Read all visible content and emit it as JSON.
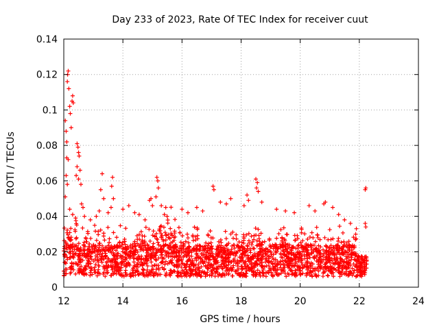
{
  "chart_data": {
    "type": "scatter",
    "title": "Day 233 of 2023, Rate Of TEC Index for receiver cuut",
    "xlabel": "GPS time / hours",
    "ylabel": "ROTI / TECUs",
    "xlim": [
      12,
      24
    ],
    "ylim": [
      0,
      0.14
    ],
    "xticks": [
      12,
      14,
      16,
      18,
      20,
      22,
      24
    ],
    "yticks": [
      0,
      0.02,
      0.04,
      0.06,
      0.08,
      0.1,
      0.12,
      0.14
    ],
    "ytick_labels": [
      "0",
      "0.02",
      "0.04",
      "0.06",
      "0.08",
      "0.1",
      "0.12",
      "0.14"
    ],
    "grid": true,
    "marker": "+",
    "color": "#ff0000",
    "series": [
      {
        "points": [
          [
            12.05,
            0.094
          ],
          [
            12.08,
            0.088
          ],
          [
            12.1,
            0.082
          ],
          [
            12.12,
            0.116
          ],
          [
            12.13,
            0.12
          ],
          [
            12.15,
            0.122
          ],
          [
            12.17,
            0.112
          ],
          [
            12.2,
            0.102
          ],
          [
            12.22,
            0.098
          ],
          [
            12.25,
            0.09
          ],
          [
            12.28,
            0.105
          ],
          [
            12.3,
            0.108
          ],
          [
            12.32,
            0.104
          ],
          [
            12.1,
            0.073
          ],
          [
            12.15,
            0.072
          ],
          [
            12.08,
            0.063
          ],
          [
            12.12,
            0.058
          ],
          [
            12.05,
            0.051
          ],
          [
            12.45,
            0.081
          ],
          [
            12.48,
            0.079
          ],
          [
            12.5,
            0.076
          ],
          [
            12.52,
            0.074
          ],
          [
            12.45,
            0.068
          ],
          [
            12.55,
            0.066
          ],
          [
            12.42,
            0.063
          ],
          [
            12.5,
            0.061
          ],
          [
            12.58,
            0.058
          ],
          [
            12.6,
            0.047
          ],
          [
            12.65,
            0.045
          ],
          [
            13.3,
            0.064
          ],
          [
            13.25,
            0.055
          ],
          [
            13.35,
            0.05
          ],
          [
            13.2,
            0.043
          ],
          [
            13.5,
            0.042
          ],
          [
            13.65,
            0.062
          ],
          [
            13.62,
            0.057
          ],
          [
            13.68,
            0.05
          ],
          [
            13.6,
            0.045
          ],
          [
            14.0,
            0.044
          ],
          [
            14.2,
            0.046
          ],
          [
            14.4,
            0.042
          ],
          [
            14.55,
            0.041
          ],
          [
            14.75,
            0.038
          ],
          [
            14.9,
            0.049
          ],
          [
            14.95,
            0.05
          ],
          [
            15.0,
            0.046
          ],
          [
            15.15,
            0.062
          ],
          [
            15.18,
            0.06
          ],
          [
            15.2,
            0.056
          ],
          [
            15.12,
            0.051
          ],
          [
            15.3,
            0.046
          ],
          [
            15.45,
            0.045
          ],
          [
            16.0,
            0.044
          ],
          [
            16.2,
            0.042
          ],
          [
            16.5,
            0.045
          ],
          [
            16.7,
            0.043
          ],
          [
            17.05,
            0.057
          ],
          [
            17.08,
            0.055
          ],
          [
            17.3,
            0.048
          ],
          [
            17.5,
            0.047
          ],
          [
            17.65,
            0.05
          ],
          [
            18.1,
            0.046
          ],
          [
            18.2,
            0.052
          ],
          [
            18.25,
            0.049
          ],
          [
            18.5,
            0.061
          ],
          [
            18.55,
            0.059
          ],
          [
            18.52,
            0.056
          ],
          [
            18.58,
            0.054
          ],
          [
            18.7,
            0.048
          ],
          [
            19.2,
            0.044
          ],
          [
            19.5,
            0.043
          ],
          [
            19.8,
            0.042
          ],
          [
            20.3,
            0.046
          ],
          [
            20.5,
            0.043
          ],
          [
            20.8,
            0.047
          ],
          [
            20.85,
            0.048
          ],
          [
            21.1,
            0.045
          ],
          [
            21.3,
            0.041
          ],
          [
            21.5,
            0.038
          ],
          [
            21.7,
            0.036
          ],
          [
            21.9,
            0.033
          ],
          [
            22.2,
            0.055
          ],
          [
            22.22,
            0.056
          ],
          [
            22.2,
            0.036
          ],
          [
            22.22,
            0.034
          ],
          [
            12.2,
            0.044
          ],
          [
            12.3,
            0.041
          ],
          [
            12.4,
            0.039
          ],
          [
            12.7,
            0.04
          ],
          [
            12.9,
            0.038
          ],
          [
            13.1,
            0.04
          ]
        ]
      }
    ]
  }
}
